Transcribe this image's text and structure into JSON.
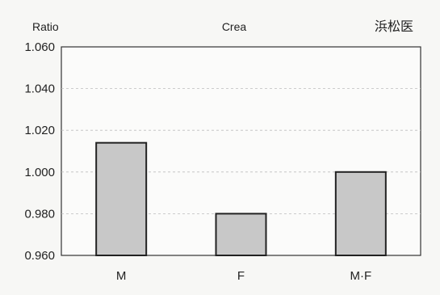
{
  "chart_data": {
    "type": "bar",
    "categories": [
      "M",
      "F",
      "M·F"
    ],
    "values": [
      1.014,
      0.98,
      1.0
    ],
    "ylabel": "Ratio",
    "title": "Crea",
    "source_label": "浜松医",
    "ylim": [
      0.96,
      1.06
    ],
    "yticks": [
      0.96,
      0.98,
      1.0,
      1.02,
      1.04,
      1.06
    ],
    "ytick_labels": [
      "0.960",
      "0.980",
      "1.000",
      "1.020",
      "1.040",
      "1.060"
    ],
    "grid": true,
    "bar_color": "#c8c8c8",
    "bar_edge_color": "#222222"
  }
}
